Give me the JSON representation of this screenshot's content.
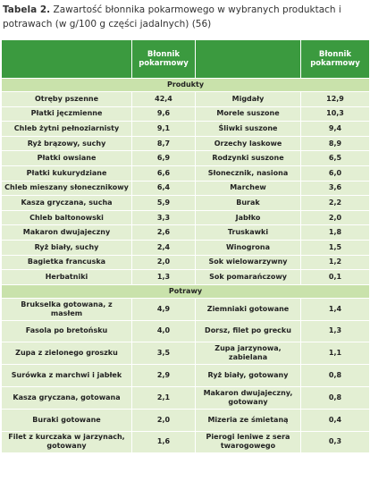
{
  "title": {
    "label": "Tabela 2.",
    "text": "Zawartość błonnika pokarmowego w wybranych produktach i potrawach (w g/100 g części jadalnych) (56)"
  },
  "table": {
    "headers": [
      "Błonnik pokarmowy",
      "Błonnik pokarmowy"
    ],
    "sections": [
      {
        "title": "Produkty",
        "rows": [
          [
            "Otręby pszenne",
            "42,4",
            "Migdały",
            "12,9"
          ],
          [
            "Płatki jęczmienne",
            "9,6",
            "Morele suszone",
            "10,3"
          ],
          [
            "Chleb żytni pełnoziarnisty",
            "9,1",
            "Śliwki suszone",
            "9,4"
          ],
          [
            "Ryż brązowy, suchy",
            "8,7",
            "Orzechy laskowe",
            "8,9"
          ],
          [
            "Płatki owsiane",
            "6,9",
            "Rodzynki suszone",
            "6,5"
          ],
          [
            "Płatki kukurydziane",
            "6,6",
            "Słonecznik, nasiona",
            "6,0"
          ],
          [
            "Chleb mieszany słonecznikowy",
            "6,4",
            "Marchew",
            "3,6"
          ],
          [
            "Kasza gryczana, sucha",
            "5,9",
            "Burak",
            "2,2"
          ],
          [
            "Chleb baltonowski",
            "3,3",
            "Jabłko",
            "2,0"
          ],
          [
            "Makaron dwujajeczny",
            "2,6",
            "Truskawki",
            "1,8"
          ],
          [
            "Ryż biały, suchy",
            "2,4",
            "Winogrona",
            "1,5"
          ],
          [
            "Bagietka francuska",
            "2,0",
            "Sok wielowarzywny",
            "1,2"
          ],
          [
            "Herbatniki",
            "1,3",
            "Sok pomarańczowy",
            "0,1"
          ]
        ]
      },
      {
        "title": "Potrawy",
        "rows": [
          [
            "Brukselka gotowana, z masłem",
            "4,9",
            "Ziemniaki gotowane",
            "1,4"
          ],
          [
            "Fasola po bretońsku",
            "4,0",
            "Dorsz, filet po grecku",
            "1,3"
          ],
          [
            "Zupa z zielonego groszku",
            "3,5",
            "Zupa jarzynowa, zabielana",
            "1,1"
          ],
          [
            "Surówka z marchwi i jabłek",
            "2,9",
            "Ryż biały, gotowany",
            "0,8"
          ],
          [
            "Kasza gryczana, gotowana",
            "2,1",
            "Makaron dwujajeczny, gotowany",
            "0,8"
          ],
          [
            "Buraki gotowane",
            "2,0",
            "Mizeria ze śmietaną",
            "0,4"
          ],
          [
            "Filet z kurczaka w jarzynach, gotowany",
            "1,6",
            "Pierogi leniwe z sera twarogowego",
            "0,3"
          ]
        ]
      }
    ]
  }
}
